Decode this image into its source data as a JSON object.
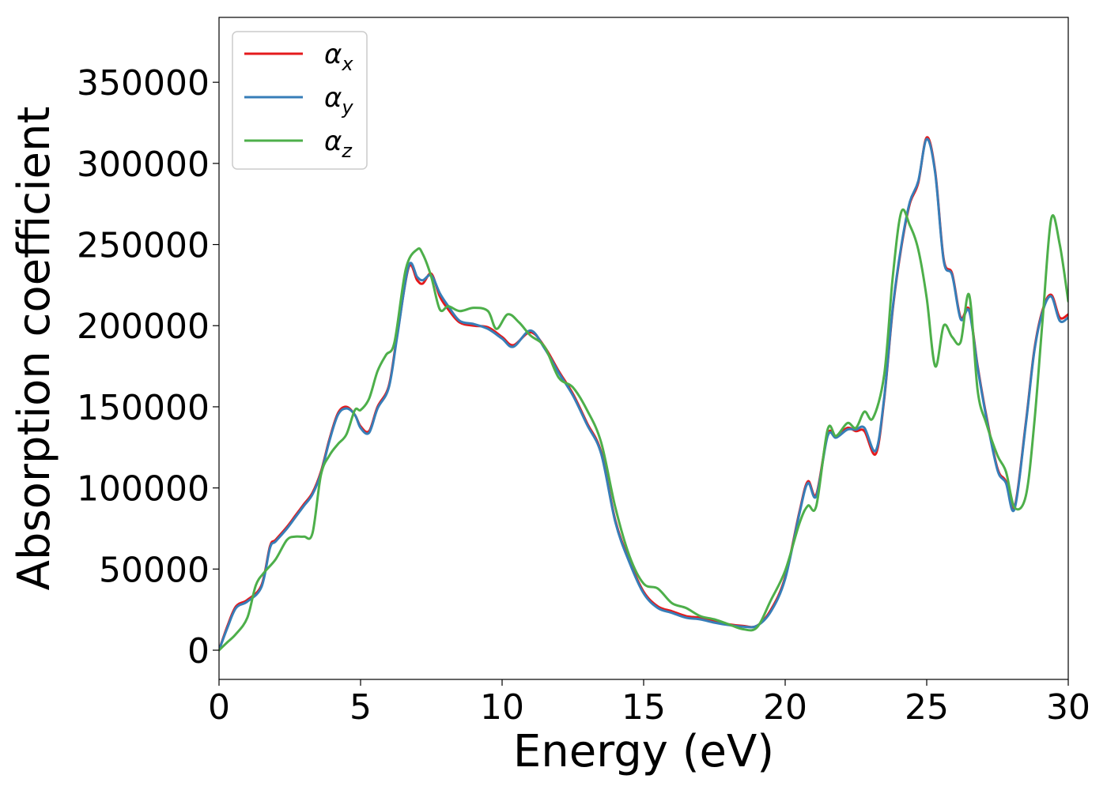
{
  "chart_data": {
    "type": "line",
    "xlabel": "Energy (eV)",
    "ylabel": "Absorption coefficient",
    "xlim": [
      0,
      30
    ],
    "ylim": [
      -18000,
      390000
    ],
    "xticks": [
      0,
      5,
      10,
      15,
      20,
      25,
      30
    ],
    "yticks": [
      0,
      50000,
      100000,
      150000,
      200000,
      250000,
      300000,
      350000
    ],
    "grid": false,
    "legend_position": "top-left",
    "series": [
      {
        "name": "αx",
        "label_base": "α",
        "label_sub": "x",
        "color": "#e41a1c",
        "x": [
          0,
          0.3,
          0.6,
          1.0,
          1.5,
          1.8,
          2.0,
          2.4,
          2.7,
          3.0,
          3.3,
          3.6,
          3.9,
          4.2,
          4.5,
          4.8,
          5.0,
          5.3,
          5.6,
          6.0,
          6.3,
          6.7,
          7.0,
          7.2,
          7.5,
          7.8,
          8.1,
          8.5,
          9.0,
          9.5,
          10.0,
          10.4,
          11.0,
          11.5,
          12.0,
          12.5,
          13.0,
          13.5,
          14.0,
          14.5,
          15.0,
          15.5,
          16.0,
          16.5,
          17.0,
          17.5,
          18.0,
          18.5,
          19.0,
          19.5,
          20.0,
          20.5,
          20.8,
          21.1,
          21.5,
          21.8,
          22.2,
          22.5,
          22.8,
          23.2,
          23.5,
          23.8,
          24.1,
          24.4,
          24.7,
          25.0,
          25.3,
          25.6,
          25.9,
          26.2,
          26.5,
          26.8,
          27.1,
          27.5,
          27.8,
          28.1,
          28.5,
          28.8,
          29.1,
          29.4,
          29.7,
          30.0
        ],
        "values": [
          0,
          15000,
          27000,
          31000,
          40000,
          64000,
          68000,
          76000,
          83000,
          90000,
          97000,
          110000,
          130000,
          146000,
          150000,
          145000,
          138000,
          135000,
          150000,
          163000,
          195000,
          236000,
          228000,
          226000,
          232000,
          218000,
          210000,
          202000,
          200000,
          199000,
          193000,
          188000,
          196000,
          187000,
          172000,
          158000,
          140000,
          122000,
          80000,
          55000,
          36000,
          27000,
          24000,
          21000,
          20000,
          18000,
          16000,
          15000,
          15000,
          25000,
          45000,
          85000,
          104000,
          96000,
          133000,
          132000,
          137000,
          135000,
          135000,
          121000,
          155000,
          210000,
          248000,
          275000,
          288000,
          316000,
          295000,
          241000,
          232000,
          205000,
          210000,
          175000,
          145000,
          112000,
          104000,
          88000,
          140000,
          185000,
          210000,
          219000,
          205000,
          207000
        ]
      },
      {
        "name": "αy",
        "label_base": "α",
        "label_sub": "y",
        "color": "#377eb8",
        "x": [
          0,
          0.3,
          0.6,
          1.0,
          1.5,
          1.8,
          2.0,
          2.4,
          2.7,
          3.0,
          3.3,
          3.6,
          3.9,
          4.2,
          4.5,
          4.8,
          5.0,
          5.3,
          5.6,
          6.0,
          6.3,
          6.7,
          7.0,
          7.2,
          7.5,
          7.8,
          8.1,
          8.5,
          9.0,
          9.5,
          10.0,
          10.4,
          11.0,
          11.5,
          12.0,
          12.5,
          13.0,
          13.5,
          14.0,
          14.5,
          15.0,
          15.5,
          16.0,
          16.5,
          17.0,
          17.5,
          18.0,
          18.5,
          19.0,
          19.5,
          20.0,
          20.5,
          20.8,
          21.1,
          21.5,
          21.8,
          22.2,
          22.5,
          22.8,
          23.2,
          23.5,
          23.8,
          24.1,
          24.4,
          24.7,
          25.0,
          25.3,
          25.6,
          25.9,
          26.2,
          26.5,
          26.8,
          27.1,
          27.5,
          27.8,
          28.1,
          28.5,
          28.8,
          29.1,
          29.4,
          29.7,
          30.0
        ],
        "values": [
          0,
          14000,
          26000,
          30000,
          39000,
          63000,
          67000,
          75000,
          82000,
          89000,
          96000,
          109000,
          129000,
          145000,
          149000,
          145000,
          137000,
          134000,
          149000,
          162000,
          194000,
          237000,
          230000,
          228000,
          231000,
          220000,
          212000,
          203000,
          201000,
          198000,
          192000,
          187000,
          197000,
          186000,
          171000,
          157000,
          139000,
          121000,
          79000,
          54000,
          35000,
          26000,
          23000,
          20000,
          19000,
          17000,
          15500,
          14500,
          15000,
          24000,
          44000,
          84000,
          103000,
          95000,
          132000,
          131000,
          136000,
          136000,
          137000,
          123000,
          156000,
          211000,
          249000,
          276000,
          289000,
          315000,
          294000,
          240000,
          231000,
          204000,
          209000,
          174000,
          144000,
          111000,
          103000,
          87000,
          139000,
          184000,
          209000,
          218000,
          203000,
          205000
        ]
      },
      {
        "name": "αz",
        "label_base": "α",
        "label_sub": "z",
        "color": "#4daf4a",
        "x": [
          0,
          0.3,
          0.6,
          1.0,
          1.3,
          1.6,
          2.0,
          2.4,
          2.7,
          3.0,
          3.3,
          3.6,
          3.9,
          4.2,
          4.5,
          4.8,
          5.0,
          5.3,
          5.6,
          5.9,
          6.2,
          6.6,
          7.0,
          7.2,
          7.5,
          7.8,
          8.1,
          8.5,
          9.0,
          9.5,
          9.8,
          10.2,
          10.6,
          11.0,
          11.5,
          12.0,
          12.5,
          13.0,
          13.5,
          14.0,
          14.5,
          15.0,
          15.5,
          16.0,
          16.5,
          17.0,
          17.5,
          18.0,
          18.5,
          19.0,
          19.5,
          20.0,
          20.5,
          20.8,
          21.1,
          21.5,
          21.8,
          22.2,
          22.5,
          22.8,
          23.1,
          23.5,
          23.8,
          24.1,
          24.4,
          24.7,
          25.0,
          25.3,
          25.6,
          25.9,
          26.2,
          26.5,
          26.8,
          27.1,
          27.5,
          27.8,
          28.1,
          28.5,
          28.8,
          29.1,
          29.4,
          29.7,
          30.0
        ],
        "values": [
          0,
          5000,
          10000,
          20000,
          40000,
          48000,
          56000,
          68000,
          70000,
          70000,
          72000,
          108000,
          120000,
          127000,
          133000,
          148000,
          148000,
          155000,
          172000,
          182000,
          190000,
          235000,
          247000,
          244000,
          230000,
          210000,
          212000,
          209000,
          211000,
          209000,
          198000,
          207000,
          202000,
          194000,
          187000,
          168000,
          162000,
          148000,
          128000,
          88000,
          58000,
          41000,
          38000,
          29000,
          26000,
          21000,
          19000,
          16000,
          13000,
          14000,
          31000,
          49000,
          78000,
          89000,
          89000,
          136000,
          132000,
          140000,
          137000,
          147000,
          143000,
          170000,
          230000,
          270000,
          262000,
          247000,
          217000,
          175000,
          200000,
          193000,
          190000,
          219000,
          160000,
          140000,
          120000,
          110000,
          88000,
          95000,
          140000,
          205000,
          266000,
          250000,
          215000
        ]
      }
    ]
  }
}
